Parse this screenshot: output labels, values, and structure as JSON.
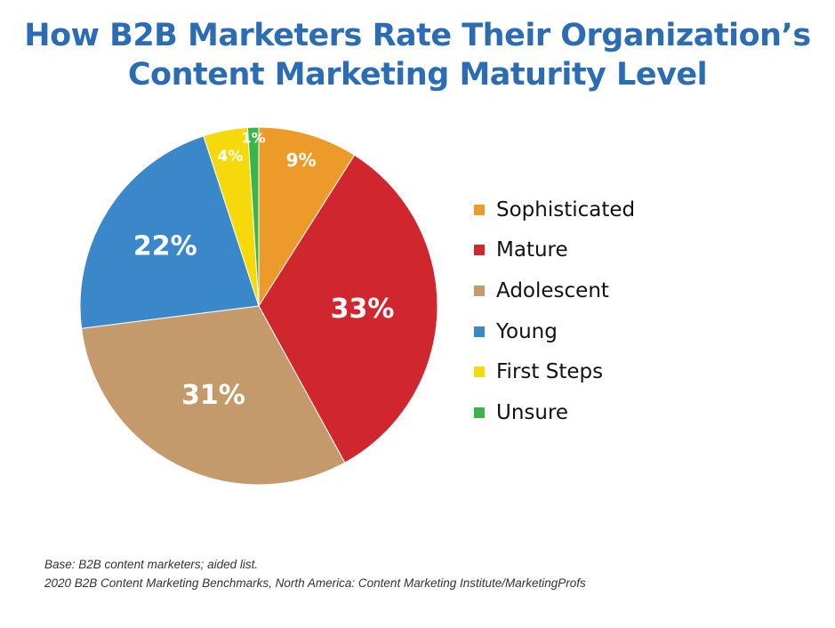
{
  "chart_data": {
    "type": "pie",
    "title": "How B2B Marketers Rate Their Organization’s Content Marketing Maturity Level",
    "title_lines": [
      "How B2B Marketers Rate Their Organization’s",
      "Content Marketing Maturity Level"
    ],
    "legend_position": "right",
    "slices": [
      {
        "label": "Sophisticated",
        "value": 9,
        "display": "9%",
        "color": "#ec9a2a"
      },
      {
        "label": "Mature",
        "value": 33,
        "display": "33%",
        "color": "#d0262e"
      },
      {
        "label": "Adolescent",
        "value": 31,
        "display": "31%",
        "color": "#c49a6c"
      },
      {
        "label": "Young",
        "value": 22,
        "display": "22%",
        "color": "#3a87c9"
      },
      {
        "label": "First Steps",
        "value": 4,
        "display": "4%",
        "color": "#f5d90a"
      },
      {
        "label": "Unsure",
        "value": 1,
        "display": "1%",
        "color": "#3ab54a"
      }
    ],
    "footnotes": [
      "Base: B2B content marketers; aided list.",
      "2020 B2B Content Marketing Benchmarks, North America: Content Marketing Institute/MarketingProfs"
    ]
  }
}
